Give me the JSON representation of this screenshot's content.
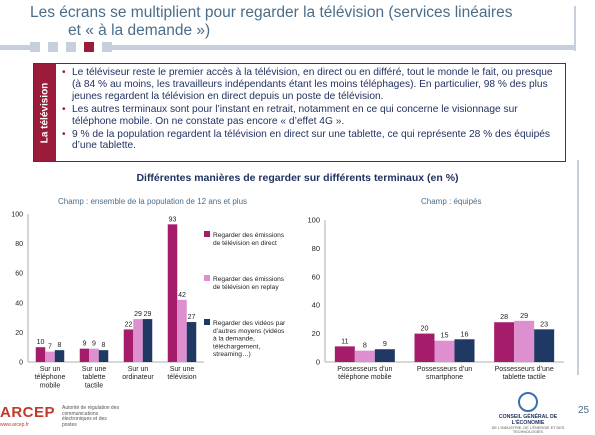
{
  "slide": {
    "title_line1": "Les écrans se multiplient pour regarder la télévision (services linéaires",
    "title_line2": "et « à la demande »)",
    "side_label": "La télévision",
    "bullets": [
      "Le téléviseur reste le premier accès à la télévision, en direct ou en différé, tout le monde le fait, ou presque (à 84 % au moins, les travailleurs indépendants étant les moins téléphages). En particulier, 98 % des plus jeunes regardent la télévision en direct depuis un poste de télévision.",
      "Les autres terminaux sont pour l’instant en retrait, notamment en ce qui concerne le visionnage sur téléphone mobile. On ne constate pas encore « d’effet 4G ».",
      "9 % de la population regardent la télévision en direct sur une tablette, ce qui représente 28 % des équipés d’une tablette."
    ],
    "chart_title": "Différentes manières de regarder sur différents terminaux (en %)",
    "page_number": "25",
    "logo_left": {
      "name": "ARCEP",
      "url": "www.arcep.fr",
      "desc": "Autorité de régulation des communications électroniques et des postes"
    },
    "logo_right": {
      "name": "CONSEIL GÉNÉRAL DE L'ÉCONOMIE",
      "sub": "DE L'INDUSTRIE, DE L'ÉNERGIE ET DES TECHNOLOGIES"
    }
  },
  "colors": {
    "title": "#4a6d8a",
    "accent": "#9b1b3a",
    "navy": "#1f2f5f",
    "series": [
      "#a51c6b",
      "#de8fcf",
      "#1f3864"
    ]
  },
  "chart_data": [
    {
      "type": "bar",
      "subtitle": "Champ : ensemble de la population de 12 ans et plus",
      "categories": [
        "Sur un téléphone mobile",
        "Sur une tablette tactile",
        "Sur un ordinateur",
        "Sur une télévision"
      ],
      "series": [
        {
          "name": "Regarder des émissions de télévision en direct",
          "values": [
            10,
            9,
            22,
            93
          ]
        },
        {
          "name": "Regarder des émissions de télévision en replay",
          "values": [
            7,
            9,
            29,
            42
          ]
        },
        {
          "name": "Regarder des vidéos par d’autres moyens (vidéos à la demande, téléchargement, streaming…)",
          "values": [
            8,
            8,
            29,
            27
          ]
        }
      ],
      "ylim": [
        0,
        100
      ],
      "yticks": [
        "0",
        "20",
        "40",
        "60",
        "80",
        "100"
      ],
      "legend": "right"
    },
    {
      "type": "bar",
      "subtitle": "Champ : équipés",
      "categories": [
        "Possesseurs d’un téléphone mobile",
        "Possesseurs d’un smartphone",
        "Possesseurs d’une tablette tactile"
      ],
      "series": [
        {
          "values": [
            11,
            20,
            28
          ]
        },
        {
          "values": [
            8,
            15,
            29
          ]
        },
        {
          "values": [
            9,
            16,
            23
          ]
        }
      ],
      "ylim": [
        0,
        100
      ],
      "yticks": [
        "0",
        "20",
        "40",
        "60",
        "80",
        "100"
      ]
    }
  ]
}
